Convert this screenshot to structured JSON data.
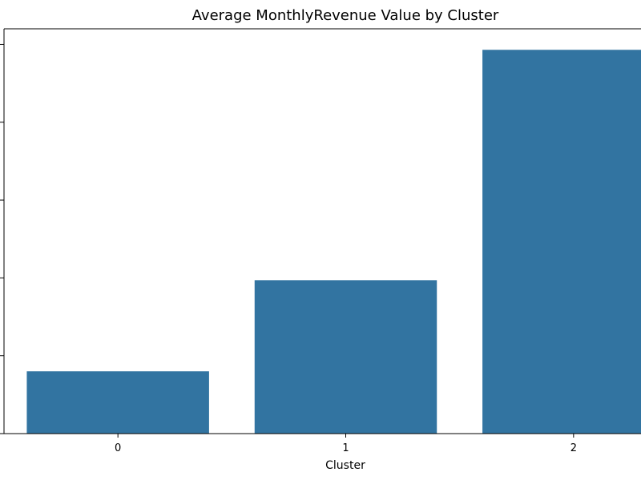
{
  "chart_data": {
    "type": "bar",
    "title": "Average MonthlyRevenue Value by Cluster",
    "xlabel": "Cluster",
    "ylabel": "",
    "categories": [
      "0",
      "1",
      "2"
    ],
    "values": [
      0.8,
      1.97,
      4.93
    ],
    "ylim": [
      0,
      5.2
    ],
    "yticks": [
      0,
      1,
      2,
      3,
      4,
      5
    ],
    "show_ytick_labels": false,
    "grid": false,
    "bar_color": "#3274a1",
    "legend": "none"
  }
}
